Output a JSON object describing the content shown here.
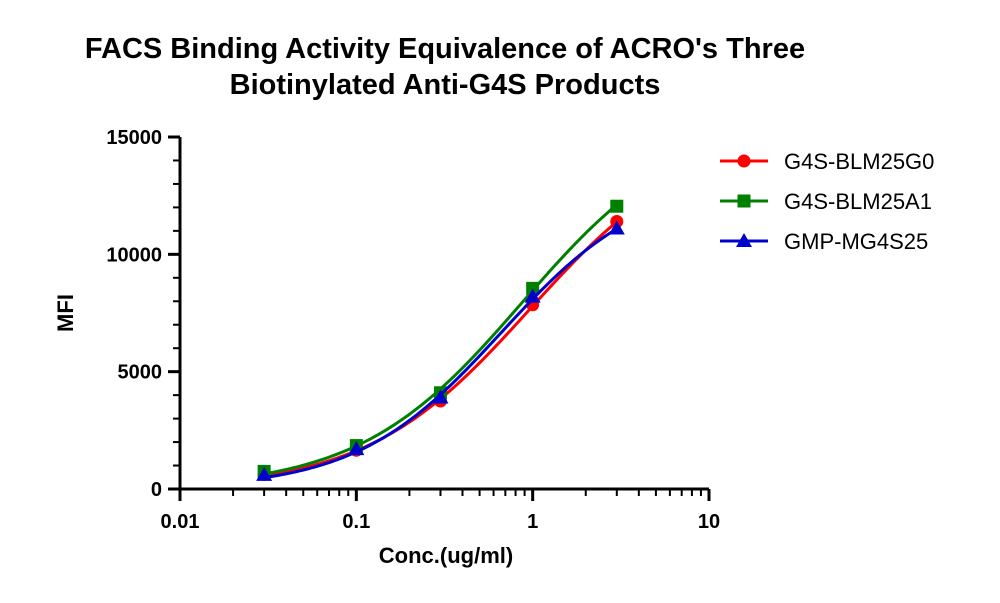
{
  "chart_data": {
    "type": "line",
    "title_line1": "FACS Binding Activity Equivalence of ACRO's Three",
    "title_line2": "Biotinylated Anti-G4S Products",
    "xlabel": "Conc.(ug/ml)",
    "ylabel": "MFI",
    "xscale": "log",
    "xlim": [
      0.01,
      10
    ],
    "ylim": [
      0,
      15000
    ],
    "x_ticks": [
      {
        "value": 0.01,
        "label": "0.01"
      },
      {
        "value": 0.1,
        "label": "0.1"
      },
      {
        "value": 1,
        "label": "1"
      },
      {
        "value": 10,
        "label": "10"
      }
    ],
    "y_ticks": [
      {
        "value": 0,
        "label": "0"
      },
      {
        "value": 5000,
        "label": "5000"
      },
      {
        "value": 10000,
        "label": "10000"
      },
      {
        "value": 15000,
        "label": "15000"
      }
    ],
    "grid": false,
    "legend_position": "top-right",
    "x": [
      0.03,
      0.1,
      0.3,
      1,
      3
    ],
    "series": [
      {
        "name": "G4S-BLM25G0",
        "marker": "circle",
        "color": "#ff0000",
        "values": [
          620,
          1650,
          3750,
          7850,
          11400
        ]
      },
      {
        "name": "G4S-BLM25A1",
        "marker": "square",
        "color": "#008000",
        "values": [
          750,
          1850,
          4100,
          8550,
          12050
        ]
      },
      {
        "name": "GMP-MG4S25",
        "marker": "triangle",
        "color": "#0000cc",
        "values": [
          600,
          1700,
          3900,
          8200,
          11100
        ]
      }
    ]
  }
}
